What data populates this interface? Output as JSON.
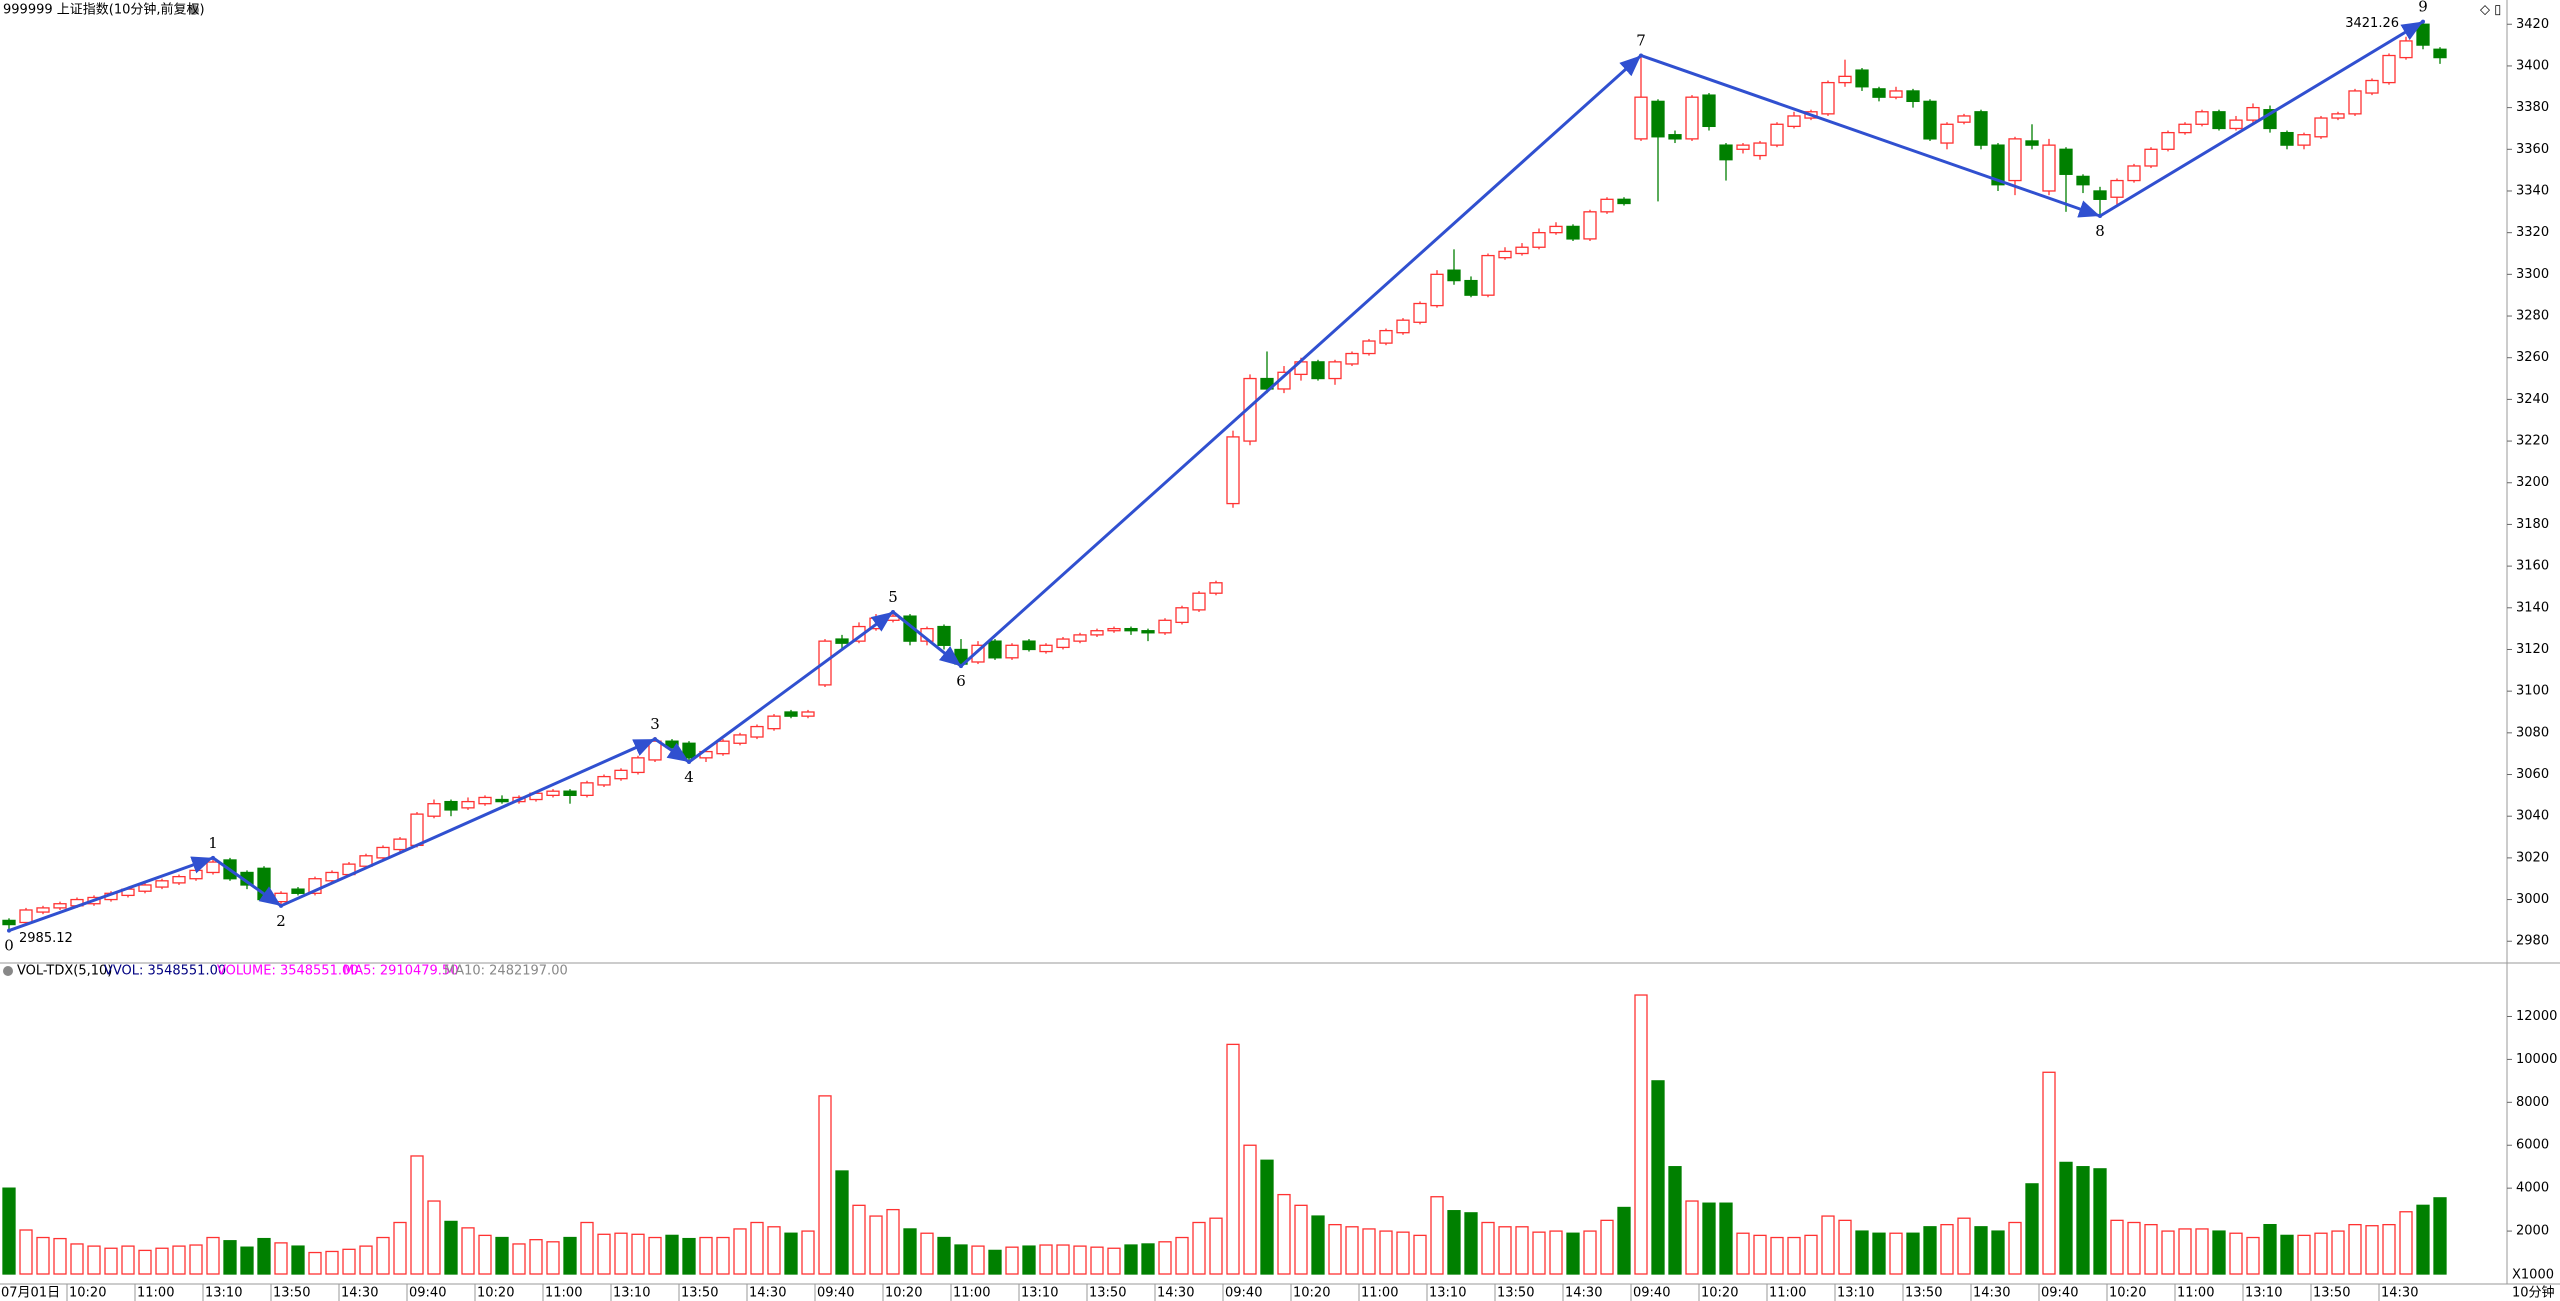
{
  "header": {
    "title": "999999 上证指数(10分钟,前复权)"
  },
  "chart_data": [
    {
      "type": "candlestick",
      "open": [
        2990,
        2989,
        2994,
        2996,
        2997,
        2998,
        3000,
        3002,
        3004,
        3006,
        3008,
        3010,
        3013,
        3019,
        3013,
        3015,
        2999,
        3005,
        3003,
        3009,
        3012,
        3016,
        3020,
        3024,
        3026,
        3040,
        3047,
        3044,
        3046,
        3048,
        3047,
        3048,
        3050,
        3052,
        3050,
        3055,
        3058,
        3061,
        3067,
        3076,
        3075,
        3068,
        3070,
        3075,
        3078,
        3082,
        3090,
        3088,
        3103,
        3125,
        3124,
        3130,
        3134,
        3136,
        3124,
        3131,
        3120,
        3114,
        3124,
        3116,
        3124,
        3119,
        3121,
        3124,
        3127,
        3129,
        3130,
        3129,
        3128,
        3133,
        3139,
        3147,
        3190,
        3220,
        3250,
        3245,
        3252,
        3258,
        3250,
        3257,
        3262,
        3267,
        3272,
        3277,
        3285,
        3302,
        3297,
        3290,
        3308,
        3310,
        3313,
        3320,
        3323,
        3317,
        3330,
        3336,
        3365,
        3383,
        3367,
        3365,
        3386,
        3362,
        3360,
        3357,
        3362,
        3371,
        3375,
        3377,
        3392,
        3398,
        3389,
        3385,
        3388,
        3383,
        3363,
        3373,
        3378,
        3362,
        3345,
        3364,
        3340,
        3360,
        3347,
        3340,
        3337,
        3345,
        3352,
        3360,
        3368,
        3372,
        3378,
        3370,
        3374,
        3379,
        3368,
        3362,
        3366,
        3375,
        3377,
        3387,
        3392,
        3404,
        3420,
        3408
      ],
      "close": [
        2988,
        2995,
        2996,
        2998,
        3000,
        3001,
        3003,
        3005,
        3007,
        3009,
        3011,
        3014,
        3018,
        3010,
        3007,
        3000,
        3003,
        3003,
        3010,
        3013,
        3017,
        3021,
        3025,
        3029,
        3041,
        3046,
        3043,
        3047,
        3049,
        3047,
        3049,
        3051,
        3052,
        3050,
        3056,
        3059,
        3062,
        3068,
        3076,
        3073,
        3068,
        3071,
        3076,
        3079,
        3083,
        3088,
        3088,
        3090,
        3124,
        3123,
        3131,
        3135,
        3136,
        3124,
        3130,
        3122,
        3113,
        3122,
        3116,
        3122,
        3120,
        3122,
        3125,
        3127,
        3129,
        3130,
        3129,
        3128,
        3134,
        3140,
        3147,
        3152,
        3222,
        3250,
        3245,
        3253,
        3258,
        3250,
        3258,
        3262,
        3268,
        3273,
        3278,
        3286,
        3300,
        3297,
        3290,
        3309,
        3311,
        3313,
        3320,
        3323,
        3317,
        3330,
        3336,
        3334,
        3385,
        3366,
        3365,
        3385,
        3371,
        3355,
        3362,
        3363,
        3372,
        3376,
        3378,
        3392,
        3395,
        3390,
        3385,
        3388,
        3383,
        3365,
        3372,
        3376,
        3362,
        3343,
        3365,
        3362,
        3362,
        3348,
        3343,
        3336,
        3345,
        3352,
        3360,
        3368,
        3372,
        3378,
        3370,
        3374,
        3380,
        3370,
        3362,
        3367,
        3375,
        3377,
        3388,
        3393,
        3405,
        3412,
        3410,
        3404
      ],
      "high": [
        2991,
        2996,
        2997,
        2999,
        3001,
        3002,
        3004,
        3006,
        3008,
        3010,
        3012,
        3015,
        3020,
        3020,
        3014,
        3016,
        3004,
        3006,
        3011,
        3014,
        3018,
        3022,
        3026,
        3030,
        3042,
        3048,
        3048,
        3049,
        3050,
        3050,
        3050,
        3052,
        3053,
        3053,
        3057,
        3060,
        3063,
        3069,
        3078,
        3077,
        3076,
        3072,
        3077,
        3080,
        3084,
        3089,
        3091,
        3091,
        3125,
        3127,
        3133,
        3137,
        3138,
        3137,
        3131,
        3132,
        3125,
        3124,
        3125,
        3123,
        3125,
        3123,
        3126,
        3128,
        3130,
        3131,
        3131,
        3130,
        3135,
        3141,
        3148,
        3153,
        3225,
        3252,
        3263,
        3256,
        3260,
        3259,
        3259,
        3263,
        3269,
        3274,
        3279,
        3287,
        3302,
        3312,
        3299,
        3310,
        3313,
        3315,
        3322,
        3325,
        3324,
        3331,
        3337,
        3337,
        3405,
        3384,
        3369,
        3386,
        3387,
        3363,
        3363,
        3364,
        3373,
        3378,
        3379,
        3393,
        3403,
        3399,
        3390,
        3390,
        3389,
        3384,
        3373,
        3377,
        3379,
        3363,
        3366,
        3372,
        3365,
        3361,
        3348,
        3342,
        3346,
        3353,
        3361,
        3369,
        3373,
        3379,
        3379,
        3376,
        3382,
        3381,
        3369,
        3368,
        3376,
        3378,
        3389,
        3394,
        3406,
        3414,
        3421.26,
        3409
      ],
      "low": [
        2985.12,
        2988,
        2993,
        2995,
        2996,
        2997,
        2999,
        3001,
        3003,
        3005,
        3007,
        3009,
        3012,
        3009,
        3005,
        2999,
        2997,
        3002,
        3002,
        3008,
        3011,
        3015,
        3019,
        3023,
        3025,
        3039,
        3040,
        3043,
        3045,
        3046,
        3046,
        3047,
        3049,
        3046,
        3049,
        3054,
        3057,
        3060,
        3066,
        3071,
        3066,
        3066,
        3069,
        3074,
        3077,
        3081,
        3087,
        3087,
        3102,
        3120,
        3123,
        3129,
        3133,
        3122,
        3122,
        3120,
        3112,
        3113,
        3115,
        3115,
        3119,
        3118,
        3120,
        3123,
        3126,
        3128,
        3127,
        3124,
        3127,
        3132,
        3138,
        3146,
        3188,
        3218,
        3243,
        3243,
        3249,
        3249,
        3247,
        3256,
        3261,
        3266,
        3271,
        3276,
        3284,
        3295,
        3289,
        3289,
        3307,
        3309,
        3312,
        3319,
        3316,
        3316,
        3329,
        3333,
        3364,
        3335,
        3363,
        3364,
        3369,
        3345,
        3358,
        3355,
        3361,
        3370,
        3374,
        3376,
        3390,
        3388,
        3383,
        3384,
        3380,
        3364,
        3360,
        3372,
        3360,
        3340,
        3338,
        3360,
        3338,
        3330,
        3339,
        3328,
        3333,
        3344,
        3351,
        3359,
        3367,
        3371,
        3369,
        3369,
        3372,
        3368,
        3360,
        3360,
        3365,
        3374,
        3376,
        3386,
        3391,
        3403,
        3408,
        3401
      ],
      "up_color": "#ff3232",
      "down_color": "#008000",
      "ylim": [
        2971,
        3423
      ],
      "yticks": [
        2980,
        3000,
        3020,
        3040,
        3060,
        3080,
        3100,
        3120,
        3140,
        3160,
        3180,
        3200,
        3220,
        3240,
        3260,
        3280,
        3300,
        3320,
        3340,
        3360,
        3380,
        3400,
        3420
      ],
      "low_label": 2985.12,
      "high_label": 3421.26,
      "waves": [
        {
          "label": "0",
          "bar": 0,
          "price": 2985.12
        },
        {
          "label": "1",
          "bar": 12,
          "price": 3020
        },
        {
          "label": "2",
          "bar": 16,
          "price": 2997
        },
        {
          "label": "3",
          "bar": 38,
          "price": 3077
        },
        {
          "label": "4",
          "bar": 40,
          "price": 3066
        },
        {
          "label": "5",
          "bar": 52,
          "price": 3138
        },
        {
          "label": "6",
          "bar": 56,
          "price": 3112
        },
        {
          "label": "7",
          "bar": 96,
          "price": 3405
        },
        {
          "label": "8",
          "bar": 123,
          "price": 3328
        },
        {
          "label": "9",
          "bar": 142,
          "price": 3421.26
        }
      ],
      "wave_color": "#3050d0",
      "trend_color": "#ff00ff"
    },
    {
      "type": "bar",
      "indicator": "VOL-TDX(5,10)",
      "vvol": "VVOL: 3548551.00",
      "volume_text": "VOLUME: 3548551.00",
      "ma5_text": "MA5: 2910479.50",
      "ma10_text": "MA10: 2482197.00",
      "unit": "X1000",
      "period": "10分钟",
      "categories": [
        "07月01日",
        null,
        null,
        null,
        "10:20",
        null,
        null,
        null,
        "11:00",
        null,
        null,
        null,
        "13:10",
        null,
        null,
        null,
        "13:50",
        null,
        null,
        null,
        "14:30",
        null,
        null,
        null,
        "09:40",
        null,
        null,
        null,
        "10:20",
        null,
        null,
        null,
        "11:00",
        null,
        null,
        null,
        "13:10",
        null,
        null,
        null,
        "13:50",
        null,
        null,
        null,
        "14:30",
        null,
        null,
        null,
        "09:40",
        null,
        null,
        null,
        "10:20",
        null,
        null,
        null,
        "11:00",
        null,
        null,
        null,
        "13:10",
        null,
        null,
        null,
        "13:50",
        null,
        null,
        null,
        "14:30",
        null,
        null,
        null,
        "09:40",
        null,
        null,
        null,
        "10:20",
        null,
        null,
        null,
        "11:00",
        null,
        null,
        null,
        "13:10",
        null,
        null,
        null,
        "13:50",
        null,
        null,
        null,
        "14:30",
        null,
        null,
        null,
        "09:40",
        null,
        null,
        null,
        "10:20",
        null,
        null,
        null,
        "11:00",
        null,
        null,
        null,
        "13:10",
        null,
        null,
        null,
        "13:50",
        null,
        null,
        null,
        "14:30",
        null,
        null,
        null,
        "09:40",
        null,
        null,
        null,
        "10:20",
        null,
        null,
        null,
        "11:00",
        null,
        null,
        null,
        "13:10",
        null,
        null,
        null,
        "13:50",
        null,
        null,
        null,
        "14:30",
        null,
        null,
        null
      ],
      "values": [
        4000,
        2050,
        1700,
        1650,
        1400,
        1300,
        1200,
        1300,
        1100,
        1200,
        1300,
        1350,
        1700,
        1550,
        1250,
        1650,
        1450,
        1300,
        1000,
        1050,
        1150,
        1300,
        1700,
        2400,
        5500,
        3400,
        2450,
        2150,
        1800,
        1700,
        1400,
        1600,
        1500,
        1700,
        2400,
        1850,
        1900,
        1850,
        1700,
        1800,
        1650,
        1700,
        1700,
        2100,
        2400,
        2200,
        1900,
        2000,
        8300,
        4800,
        3200,
        2700,
        3000,
        2100,
        1900,
        1700,
        1350,
        1300,
        1100,
        1250,
        1300,
        1350,
        1350,
        1300,
        1250,
        1200,
        1350,
        1400,
        1500,
        1700,
        2400,
        2600,
        10700,
        6000,
        5300,
        3700,
        3200,
        2700,
        2300,
        2200,
        2100,
        2000,
        1950,
        1800,
        3600,
        2950,
        2850,
        2400,
        2200,
        2200,
        1950,
        2000,
        1900,
        2000,
        2500,
        3100,
        13000,
        9000,
        5000,
        3400,
        3300,
        3300,
        1900,
        1800,
        1700,
        1700,
        1800,
        2700,
        2500,
        2000,
        1900,
        1900,
        1900,
        2200,
        2300,
        2600,
        2200,
        2000,
        2400,
        4200,
        9400,
        5200,
        5000,
        4900,
        2500,
        2400,
        2300,
        2000,
        2100,
        2100,
        2000,
        1900,
        1700,
        2300,
        1800,
        1800,
        1900,
        2000,
        2300,
        2250,
        2300,
        2900,
        3200,
        3548.551
      ],
      "ylim": [
        0,
        13700
      ],
      "yticks": [
        2000,
        4000,
        6000,
        8000,
        10000,
        12000
      ]
    }
  ]
}
